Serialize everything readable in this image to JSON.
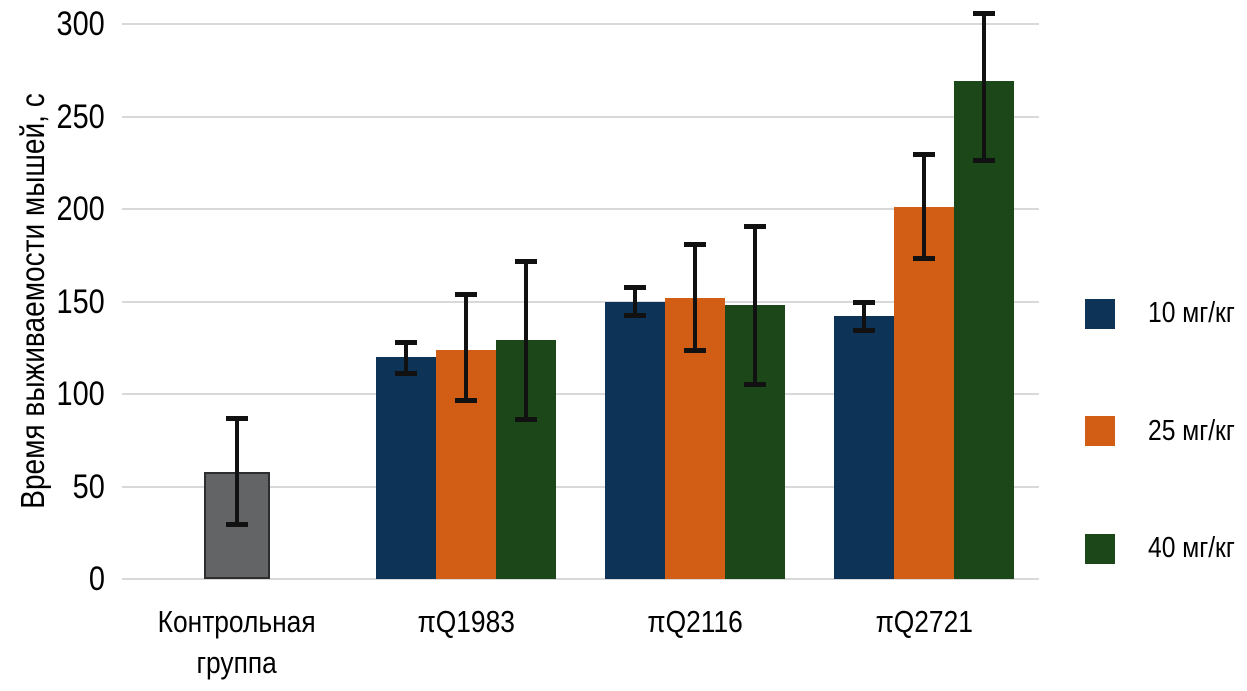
{
  "chart_data": {
    "type": "bar",
    "title": "",
    "ylabel": "Время выживаемости мышей, с",
    "xlabel": "",
    "ylim": [
      0,
      300
    ],
    "yticks": [
      0,
      50,
      100,
      150,
      200,
      250,
      300
    ],
    "grid": true,
    "legend_position": "right",
    "categories": [
      "Контрольная группа",
      "πQ1983",
      "πQ2116",
      "πQ2721"
    ],
    "series": [
      {
        "name": "Контрольная группа",
        "show_in_legend": false,
        "color": "#626466",
        "border_color": "#2c2e30",
        "values": [
          58,
          null,
          null,
          null
        ],
        "whisker_low": [
          28,
          null,
          null,
          null
        ],
        "whisker_high": [
          88,
          null,
          null,
          null
        ]
      },
      {
        "name": "10 мг/кг",
        "show_in_legend": true,
        "color": "#0d3356",
        "values": [
          null,
          120,
          150,
          142
        ],
        "whisker_low": [
          null,
          110,
          141,
          133
        ],
        "whisker_high": [
          null,
          129,
          159,
          151
        ]
      },
      {
        "name": "25 мг/кг",
        "show_in_legend": true,
        "color": "#d25d15",
        "values": [
          null,
          124,
          152,
          201
        ],
        "whisker_low": [
          null,
          95,
          122,
          172
        ],
        "whisker_high": [
          null,
          155,
          182,
          231
        ]
      },
      {
        "name": "40 мг/кг",
        "show_in_legend": true,
        "color": "#1b4719",
        "values": [
          null,
          129,
          148,
          269
        ],
        "whisker_low": [
          null,
          85,
          104,
          225
        ],
        "whisker_high": [
          null,
          173,
          192,
          307
        ]
      }
    ],
    "grid_color": "#d9d9d9",
    "error_bar_color": "#111111"
  }
}
